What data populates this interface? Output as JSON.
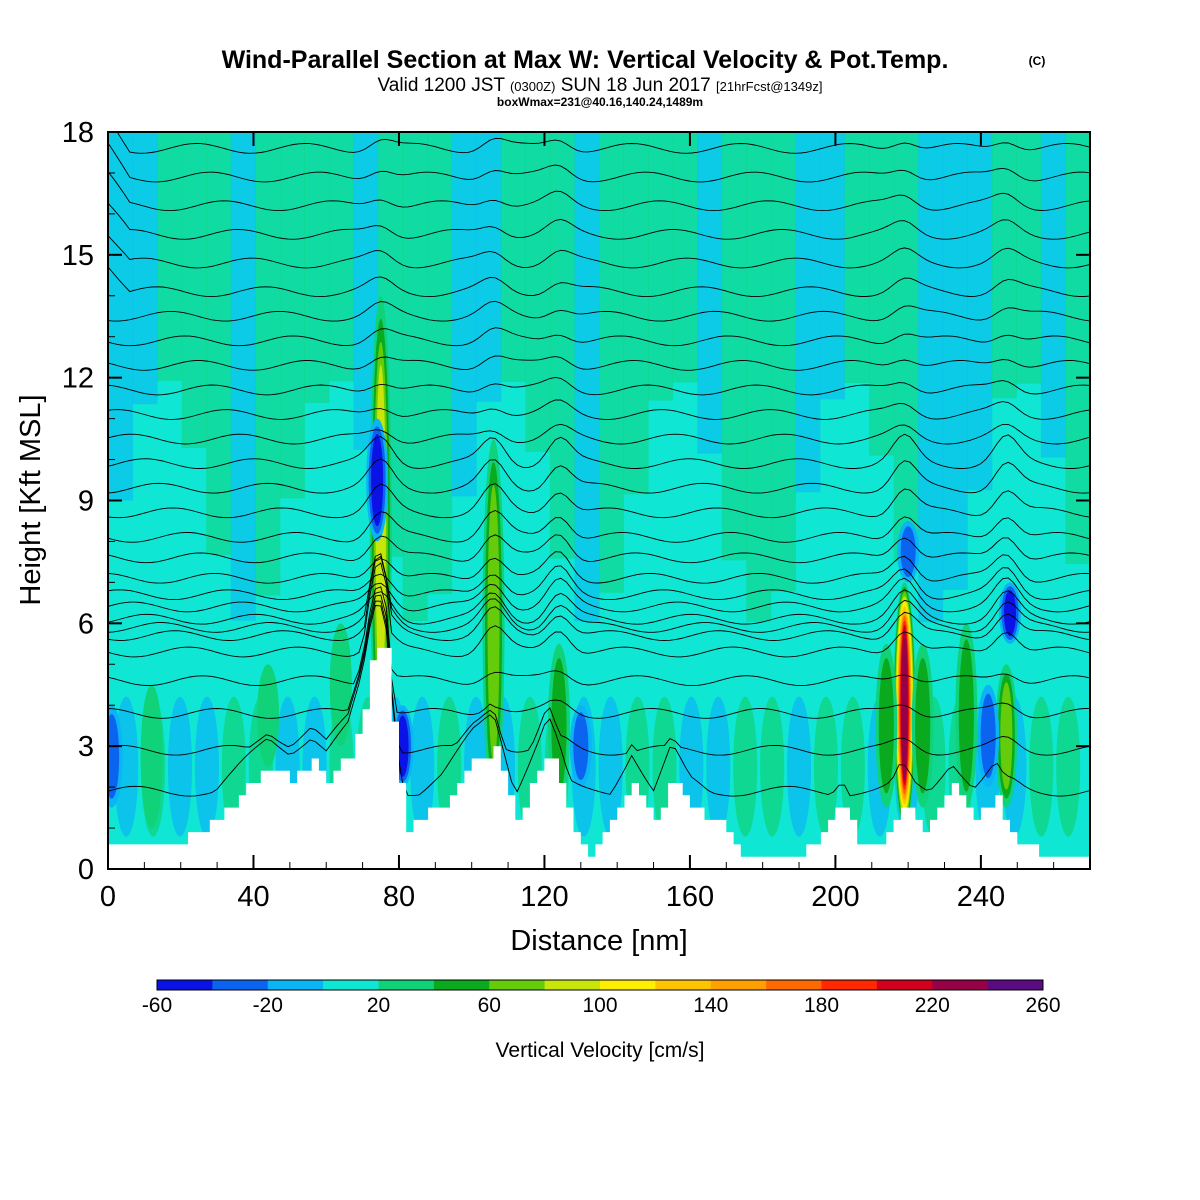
{
  "chart_data": {
    "type": "heatmap",
    "title": "Wind-Parallel Section at Max W: Vertical Velocity & Pot.Temp.",
    "title_mark": "(C)",
    "subtitle": {
      "valid": "Valid 1200 JST",
      "utc": "(0300Z)",
      "date": "SUN 18 Jun 2017",
      "fcst": "[21hrFcst@1349z]"
    },
    "box_info": "boxWmax=231@40.16,140.24,1489m",
    "xlabel": "Distance [nm]",
    "ylabel": "Height [Kft MSL]",
    "xlim": [
      0,
      270
    ],
    "ylim": [
      0,
      18
    ],
    "x_ticks": [
      "0",
      "40",
      "80",
      "120",
      "160",
      "200",
      "240"
    ],
    "x_tick_values": [
      0,
      40,
      80,
      120,
      160,
      200,
      240
    ],
    "y_ticks": [
      "0",
      "3",
      "6",
      "9",
      "12",
      "15",
      "18"
    ],
    "y_tick_values": [
      0,
      3,
      6,
      9,
      12,
      15,
      18
    ],
    "colorbar": {
      "label": "Vertical Velocity [cm/s]",
      "tick_labels": [
        "-60",
        "-20",
        "20",
        "60",
        "100",
        "140",
        "180",
        "220",
        "260"
      ],
      "tick_values": [
        -60,
        -20,
        20,
        60,
        100,
        140,
        180,
        220,
        260
      ],
      "bounds": [
        -60,
        -40,
        -20,
        0,
        20,
        40,
        60,
        80,
        100,
        120,
        140,
        160,
        180,
        200,
        220,
        240,
        260
      ],
      "colors": [
        "#0a12e6",
        "#0a64f0",
        "#0ab4f5",
        "#10e6d4",
        "#10d278",
        "#0aaa1e",
        "#64cc0a",
        "#c8e60a",
        "#ffee00",
        "#ffc400",
        "#ffa000",
        "#ff6a00",
        "#ff2800",
        "#d2001e",
        "#960046",
        "#5a0a82"
      ]
    },
    "background_w": [
      0,
      20
    ],
    "updrafts": [
      {
        "x": 75,
        "z": [
          2.5,
          14
        ],
        "w": 100
      },
      {
        "x": 106,
        "z": [
          1.5,
          10.5
        ],
        "w": 70
      },
      {
        "x": 124,
        "z": [
          1.5,
          5.5
        ],
        "w": 60
      },
      {
        "x": 219,
        "z": [
          1,
          7
        ],
        "w": 231
      },
      {
        "x": 214,
        "z": [
          1.5,
          5.5
        ],
        "w": 60
      },
      {
        "x": 224,
        "z": [
          1.5,
          5.5
        ],
        "w": 50
      },
      {
        "x": 236,
        "z": [
          1.5,
          6
        ],
        "w": 50
      },
      {
        "x": 247,
        "z": [
          1.5,
          5
        ],
        "w": 80
      },
      {
        "x": 64,
        "z": [
          3,
          6
        ],
        "w": 45
      },
      {
        "x": 44,
        "z": [
          2.5,
          5
        ],
        "w": 40
      },
      {
        "x": 12,
        "z": [
          1,
          4.5
        ],
        "w": 35
      }
    ],
    "downdrafts": [
      {
        "x": 74,
        "z": [
          8,
          11
        ],
        "w": -50
      },
      {
        "x": 81,
        "z": [
          2,
          4
        ],
        "w": -60
      },
      {
        "x": 220,
        "z": [
          7,
          8.5
        ],
        "w": -45
      },
      {
        "x": 248,
        "z": [
          5.5,
          7
        ],
        "w": -50
      },
      {
        "x": 1,
        "z": [
          1.5,
          4
        ],
        "w": -30
      },
      {
        "x": 242,
        "z": [
          2,
          4.5
        ],
        "w": -45
      },
      {
        "x": 130,
        "z": [
          2,
          4
        ],
        "w": -35
      }
    ],
    "terrain": [
      {
        "x": 0,
        "z": 0.65
      },
      {
        "x": 20,
        "z": 0.65
      },
      {
        "x": 28,
        "z": 1.1
      },
      {
        "x": 34,
        "z": 1.6
      },
      {
        "x": 44,
        "z": 2.5
      },
      {
        "x": 50,
        "z": 2.2
      },
      {
        "x": 56,
        "z": 2.6
      },
      {
        "x": 60,
        "z": 2.2
      },
      {
        "x": 66,
        "z": 2.8
      },
      {
        "x": 70,
        "z": 4
      },
      {
        "x": 73,
        "z": 5.5
      },
      {
        "x": 76,
        "z": 5.5
      },
      {
        "x": 79,
        "z": 2.5
      },
      {
        "x": 82,
        "z": 1
      },
      {
        "x": 92,
        "z": 1.6
      },
      {
        "x": 100,
        "z": 2.6
      },
      {
        "x": 106,
        "z": 2.9
      },
      {
        "x": 112,
        "z": 1.2
      },
      {
        "x": 116,
        "z": 2
      },
      {
        "x": 121,
        "z": 2.9
      },
      {
        "x": 127,
        "z": 1.2
      },
      {
        "x": 132,
        "z": 0.3
      },
      {
        "x": 138,
        "z": 1.2
      },
      {
        "x": 144,
        "z": 2.2
      },
      {
        "x": 150,
        "z": 1.2
      },
      {
        "x": 155,
        "z": 2.3
      },
      {
        "x": 160,
        "z": 1.5
      },
      {
        "x": 168,
        "z": 1.1
      },
      {
        "x": 174,
        "z": 0.3
      },
      {
        "x": 190,
        "z": 0.4
      },
      {
        "x": 196,
        "z": 0.9
      },
      {
        "x": 202,
        "z": 1.6
      },
      {
        "x": 206,
        "z": 0.7
      },
      {
        "x": 212,
        "z": 0.7
      },
      {
        "x": 218,
        "z": 1.6
      },
      {
        "x": 224,
        "z": 1
      },
      {
        "x": 232,
        "z": 2
      },
      {
        "x": 238,
        "z": 1.3
      },
      {
        "x": 244,
        "z": 1.7
      },
      {
        "x": 250,
        "z": 0.6
      },
      {
        "x": 260,
        "z": 0.3
      },
      {
        "x": 270,
        "z": 0.3
      }
    ],
    "theta_levels_kft": [
      1.9,
      2.9,
      3.8,
      4.6,
      5.3,
      5.7,
      5.9,
      6.1,
      6.4,
      6.7,
      7.1,
      7.6,
      8.1,
      8.7,
      9.3,
      9.9,
      10.5,
      11.1,
      11.7,
      12.3,
      12.9,
      13.5,
      14.1,
      14.8,
      15.5,
      16.2,
      16.9,
      17.6
    ],
    "grid": false,
    "legend": "bottom"
  }
}
